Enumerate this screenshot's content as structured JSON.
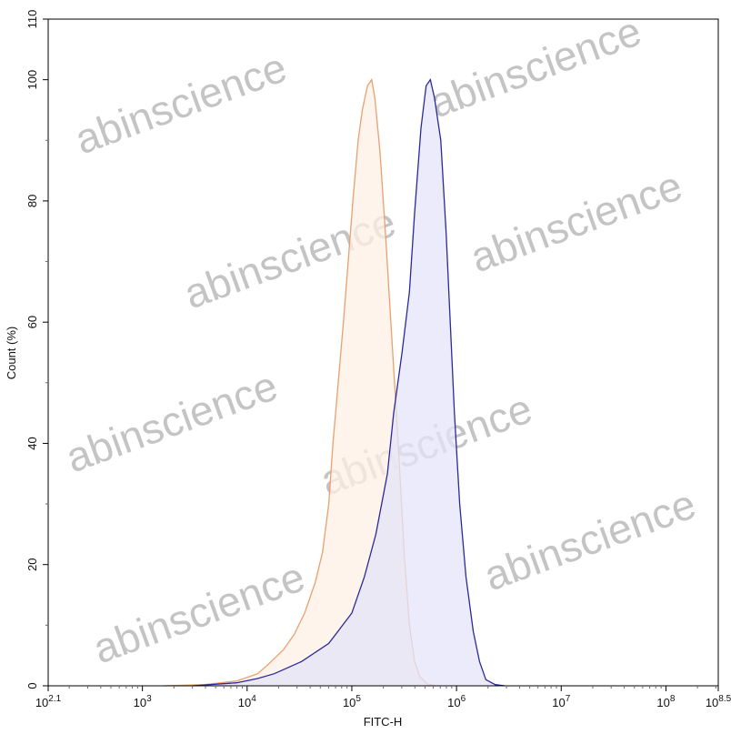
{
  "chart_data": {
    "type": "area",
    "title": "",
    "xlabel": "FITC-H",
    "ylabel": "Count (%)",
    "xscale": "log10",
    "xlim_log10": [
      2.1,
      8.5
    ],
    "ylim": [
      0,
      110
    ],
    "grid": false,
    "x_ticks": [
      {
        "base": "10",
        "exp": "2.1",
        "value_log10": 2.1
      },
      {
        "base": "10",
        "exp": "3",
        "value_log10": 3
      },
      {
        "base": "10",
        "exp": "4",
        "value_log10": 4
      },
      {
        "base": "10",
        "exp": "5",
        "value_log10": 5
      },
      {
        "base": "10",
        "exp": "6",
        "value_log10": 6
      },
      {
        "base": "10",
        "exp": "7",
        "value_log10": 7
      },
      {
        "base": "10",
        "exp": "8",
        "value_log10": 8
      },
      {
        "base": "10",
        "exp": "8.5",
        "value_log10": 8.5
      }
    ],
    "y_ticks": [
      "0",
      "20",
      "40",
      "60",
      "80",
      "100",
      "110"
    ],
    "series": [
      {
        "color": "#e8a070",
        "fill": "#fdf0e4",
        "points_log10x": [
          [
            3.2,
            0
          ],
          [
            3.6,
            0.2
          ],
          [
            3.9,
            0.8
          ],
          [
            4.1,
            2
          ],
          [
            4.2,
            3.5
          ],
          [
            4.35,
            6
          ],
          [
            4.45,
            8.5
          ],
          [
            4.55,
            12
          ],
          [
            4.65,
            17
          ],
          [
            4.72,
            22
          ],
          [
            4.78,
            30
          ],
          [
            4.82,
            40
          ],
          [
            4.87,
            50
          ],
          [
            4.92,
            60
          ],
          [
            4.97,
            71
          ],
          [
            5.01,
            80
          ],
          [
            5.06,
            90
          ],
          [
            5.1,
            95
          ],
          [
            5.15,
            99
          ],
          [
            5.19,
            100
          ],
          [
            5.22,
            97
          ],
          [
            5.27,
            88
          ],
          [
            5.32,
            75
          ],
          [
            5.38,
            58
          ],
          [
            5.44,
            41
          ],
          [
            5.5,
            22
          ],
          [
            5.55,
            10
          ],
          [
            5.6,
            4
          ],
          [
            5.65,
            1.5
          ],
          [
            5.72,
            0.3
          ],
          [
            5.8,
            0
          ]
        ]
      },
      {
        "color": "#2a2a9a",
        "fill": "#e4e4fa",
        "points_log10x": [
          [
            3.48,
            0
          ],
          [
            3.9,
            0.5
          ],
          [
            4.1,
            1.2
          ],
          [
            4.26,
            2
          ],
          [
            4.52,
            4
          ],
          [
            4.78,
            7
          ],
          [
            5.0,
            12
          ],
          [
            5.12,
            18
          ],
          [
            5.23,
            25
          ],
          [
            5.34,
            35
          ],
          [
            5.4,
            45
          ],
          [
            5.48,
            55
          ],
          [
            5.55,
            65
          ],
          [
            5.6,
            78
          ],
          [
            5.66,
            92
          ],
          [
            5.71,
            99
          ],
          [
            5.75,
            100
          ],
          [
            5.79,
            97
          ],
          [
            5.85,
            90
          ],
          [
            5.9,
            75
          ],
          [
            5.94,
            60
          ],
          [
            5.98,
            45
          ],
          [
            6.03,
            30
          ],
          [
            6.09,
            18
          ],
          [
            6.16,
            9
          ],
          [
            6.22,
            4
          ],
          [
            6.28,
            1
          ],
          [
            6.37,
            0.2
          ],
          [
            6.46,
            0
          ]
        ]
      }
    ]
  },
  "watermark": "abinscience"
}
